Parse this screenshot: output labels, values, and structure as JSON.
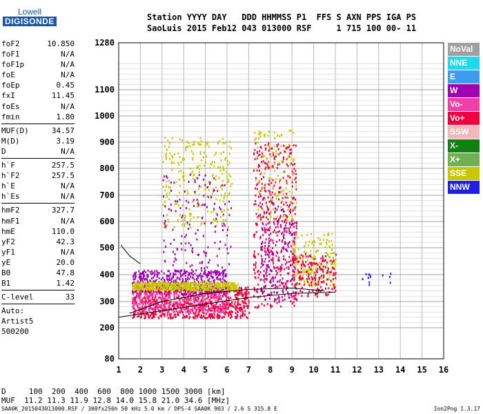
{
  "logo": {
    "brand": "Lowell",
    "name": "DIGISONDE"
  },
  "header": {
    "line1": "Station YYYY DAY   DDD HHMMSS P1  FFS S AXN PPS IGA PS",
    "line2": "SaoLuis 2015 Feb12 043 013000 RSF     1 715 100 00- 11"
  },
  "params_group1": [
    {
      "label": "foF2",
      "value": "10.850"
    },
    {
      "label": "foF1",
      "value": "N/A"
    },
    {
      "label": "foF1p",
      "value": "N/A"
    },
    {
      "label": "foE",
      "value": "N/A"
    },
    {
      "label": "foEp",
      "value": "0.45"
    },
    {
      "label": "fxI",
      "value": "11.45"
    },
    {
      "label": "foEs",
      "value": "N/A"
    },
    {
      "label": "fmin",
      "value": "1.80"
    }
  ],
  "params_group2": [
    {
      "label": "MUF(D)",
      "value": "34.57"
    },
    {
      "label": "M(D)",
      "value": "3.19"
    },
    {
      "label": "D",
      "value": "N/A"
    }
  ],
  "params_group3": [
    {
      "label": "h`F",
      "value": "257.5"
    },
    {
      "label": "h`F2",
      "value": "257.5"
    },
    {
      "label": "h`E",
      "value": "N/A"
    },
    {
      "label": "h`Es",
      "value": "N/A"
    }
  ],
  "params_group4": [
    {
      "label": "hmF2",
      "value": "327.7"
    },
    {
      "label": "hmF1",
      "value": "N/A"
    },
    {
      "label": "hmE",
      "value": "110.0"
    },
    {
      "label": "yF2",
      "value": "42.3"
    },
    {
      "label": "yF1",
      "value": "N/A"
    },
    {
      "label": "yE",
      "value": "20.0"
    },
    {
      "label": "B0",
      "value": "47.8"
    },
    {
      "label": "B1",
      "value": "1.42"
    }
  ],
  "clevel": {
    "label": "C-level",
    "value": "33"
  },
  "auto": [
    "Auto:",
    "Artist5",
    "500200"
  ],
  "legend": [
    {
      "label": "NoVal",
      "color": "#a0a0a0"
    },
    {
      "label": "NNE",
      "color": "#22d8f0"
    },
    {
      "label": "E",
      "color": "#3c9cf0"
    },
    {
      "label": "W",
      "color": "#a000b0"
    },
    {
      "label": "Vo-",
      "color": "#f040a8"
    },
    {
      "label": "Vo+",
      "color": "#f00040"
    },
    {
      "label": "SSW",
      "color": "#f0b8b8"
    },
    {
      "label": "X-",
      "color": "#108010"
    },
    {
      "label": "X+",
      "color": "#70b050"
    },
    {
      "label": "SSE",
      "color": "#c8c800"
    },
    {
      "label": "NNW",
      "color": "#2020e0"
    }
  ],
  "muf_table": {
    "line1": "D     100  200  400  600  800 1000 1500 3000 [km]",
    "line2": "MUF  11.2 11.3 11.9 12.8 14.0 15.8 21.0 34.6 [MHz]"
  },
  "footer": {
    "left": "SAA0K_2015043013000.RSF / 300fx256h 50 kHz 5.0 km / DPS-4 SAA0K 903 / 2.6 S 315.8 E",
    "right": "Ion2Png 1.3.17"
  },
  "chart_data": {
    "type": "scatter",
    "xlim": [
      1,
      16
    ],
    "ylim": [
      80,
      1280
    ],
    "x_ticks": [
      "1",
      "2",
      "3",
      "4",
      "5",
      "6",
      "7",
      "8",
      "9",
      "10",
      "11",
      "12",
      "13",
      "14",
      "15",
      "16"
    ],
    "y_ticks": [
      "80",
      "200",
      "300",
      "400",
      "500",
      "600",
      "700",
      "800",
      "900",
      "1000",
      "1100",
      "1280"
    ],
    "grid": true,
    "clusters": [
      {
        "x": [
          1.6,
          7.0
        ],
        "y": [
          240,
          360
        ],
        "color": "#f00040",
        "density": 900
      },
      {
        "x": [
          1.6,
          6.0
        ],
        "y": [
          330,
          420
        ],
        "color": "#a000b0",
        "density": 450
      },
      {
        "x": [
          1.6,
          6.5
        ],
        "y": [
          345,
          375
        ],
        "color": "#c8c800",
        "density": 500
      },
      {
        "x": [
          1.6,
          6.0
        ],
        "y": [
          260,
          340
        ],
        "color": "#f040a8",
        "density": 350
      },
      {
        "x": [
          3.0,
          6.2
        ],
        "y": [
          580,
          920
        ],
        "color": "#c8c800",
        "density": 260
      },
      {
        "x": [
          3.0,
          6.2
        ],
        "y": [
          400,
          780
        ],
        "color": "#a000b0",
        "density": 160
      },
      {
        "x": [
          7.2,
          9.2
        ],
        "y": [
          280,
          900
        ],
        "color": "#f00040",
        "density": 450
      },
      {
        "x": [
          7.2,
          9.2
        ],
        "y": [
          600,
          950
        ],
        "color": "#c8c800",
        "density": 130
      },
      {
        "x": [
          7.5,
          9.2
        ],
        "y": [
          300,
          700
        ],
        "color": "#a000b0",
        "density": 200
      },
      {
        "x": [
          9.0,
          11.0
        ],
        "y": [
          360,
          560
        ],
        "color": "#c8c800",
        "density": 180
      },
      {
        "x": [
          9.0,
          11.0
        ],
        "y": [
          320,
          480
        ],
        "color": "#f00040",
        "density": 180
      },
      {
        "x": [
          12.2,
          13.6
        ],
        "y": [
          360,
          420
        ],
        "color": "#2020e0",
        "density": 12
      }
    ],
    "trace_lower": [
      [
        1.0,
        240
      ],
      [
        3,
        265
      ],
      [
        5,
        290
      ],
      [
        7,
        315
      ],
      [
        9,
        330
      ],
      [
        11,
        335
      ]
    ],
    "trace_upper": [
      [
        1.5,
        255
      ],
      [
        3,
        300
      ],
      [
        5,
        330
      ],
      [
        7,
        345
      ],
      [
        9,
        350
      ],
      [
        10.5,
        340
      ]
    ],
    "trace_left": [
      [
        1.1,
        510
      ],
      [
        1.5,
        470
      ],
      [
        2,
        440
      ]
    ]
  }
}
